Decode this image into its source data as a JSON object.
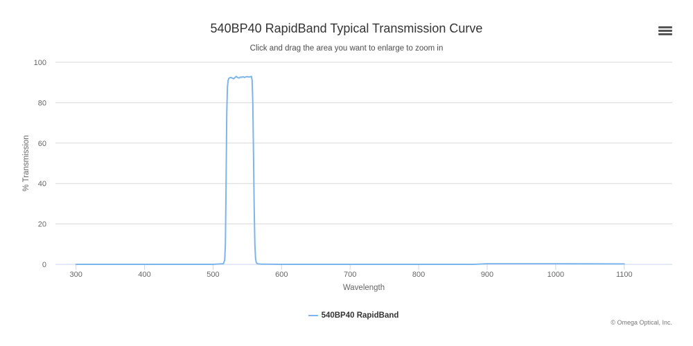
{
  "chart_data": {
    "type": "line",
    "title": "540BP40 RapidBand Typical Transmission Curve",
    "subtitle": "Click and drag the area you want to enlarge to zoom in",
    "xlabel": "Wavelength",
    "ylabel": "% Transmission",
    "xlim": [
      270,
      1170
    ],
    "ylim": [
      0,
      100
    ],
    "xticks": [
      300,
      400,
      500,
      600,
      700,
      800,
      900,
      1000,
      1100
    ],
    "yticks": [
      0,
      20,
      40,
      60,
      80,
      100
    ],
    "grid": true,
    "legend_position": "bottom",
    "series": [
      {
        "name": "540BP40 RapidBand",
        "color": "#7cb5ec",
        "x": [
          300,
          400,
          500,
          515,
          517,
          518,
          519,
          520,
          521,
          522,
          523,
          524,
          526,
          528,
          530,
          532,
          534,
          536,
          538,
          540,
          542,
          544,
          546,
          548,
          550,
          552,
          554,
          556,
          557,
          558,
          559,
          560,
          561,
          562,
          563,
          564,
          566,
          570,
          600,
          700,
          800,
          880,
          900,
          1000,
          1100
        ],
        "values": [
          0,
          0,
          0,
          0.3,
          2,
          10,
          40,
          75,
          88,
          91,
          92,
          92.3,
          92.5,
          92.2,
          91.8,
          92.5,
          93,
          92.4,
          92.2,
          92.7,
          92.6,
          92.8,
          92.5,
          92.8,
          92.9,
          92.7,
          92.8,
          93,
          91,
          80,
          55,
          28,
          10,
          3,
          1,
          0.5,
          0.2,
          0.1,
          0,
          0,
          0,
          0,
          0.3,
          0.3,
          0.2
        ]
      }
    ]
  },
  "toolbar": {
    "menu_icon": "hamburger-menu-icon"
  },
  "credits": "© Omega Optical, Inc."
}
